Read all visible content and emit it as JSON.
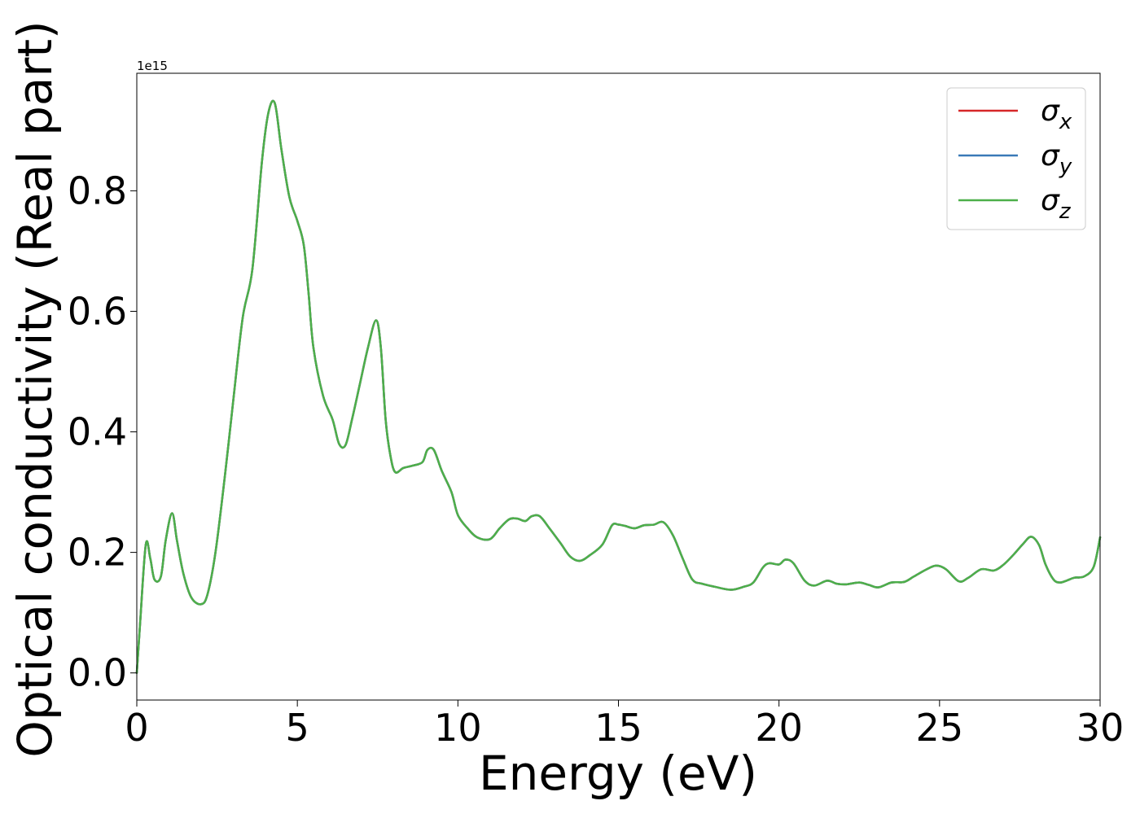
{
  "chart_data": {
    "type": "line",
    "title": "",
    "xlabel": "Energy (eV)",
    "ylabel": "Optical conductivity (Real part)",
    "offset_text": "1e15",
    "xlim": [
      0,
      30
    ],
    "ylim": [
      -0.045,
      0.995
    ],
    "xticks": [
      0,
      5,
      10,
      15,
      20,
      25,
      30
    ],
    "xtick_labels": [
      "0",
      "5",
      "10",
      "15",
      "20",
      "25",
      "30"
    ],
    "yticks": [
      0.0,
      0.2,
      0.4,
      0.6,
      0.8
    ],
    "ytick_labels": [
      "0.0",
      "0.2",
      "0.4",
      "0.6",
      "0.8"
    ],
    "grid": false,
    "legend_position": "top-right",
    "legend": [
      {
        "symbol": "σ",
        "subscript": "x",
        "color": "#d62728"
      },
      {
        "symbol": "σ",
        "subscript": "y",
        "color": "#3a7ab8"
      },
      {
        "symbol": "σ",
        "subscript": "z",
        "color": "#4daf4a"
      }
    ],
    "x": [
      0,
      0.1,
      0.28,
      0.42,
      0.55,
      0.75,
      0.9,
      1.1,
      1.25,
      1.45,
      1.7,
      2.0,
      2.2,
      2.45,
      2.75,
      3.0,
      3.3,
      3.6,
      3.9,
      4.1,
      4.3,
      4.5,
      4.75,
      5.0,
      5.2,
      5.35,
      5.5,
      5.8,
      6.1,
      6.3,
      6.5,
      6.7,
      6.95,
      7.2,
      7.45,
      7.6,
      7.75,
      7.9,
      8.05,
      8.3,
      8.6,
      8.9,
      9.05,
      9.25,
      9.5,
      9.8,
      10.0,
      10.3,
      10.6,
      11.0,
      11.3,
      11.6,
      11.85,
      12.1,
      12.3,
      12.55,
      12.85,
      13.2,
      13.5,
      13.8,
      14.1,
      14.5,
      14.8,
      15.0,
      15.2,
      15.5,
      15.8,
      16.1,
      16.4,
      16.7,
      17.0,
      17.3,
      17.6,
      18.0,
      18.5,
      18.9,
      19.2,
      19.5,
      19.7,
      20.0,
      20.2,
      20.45,
      20.8,
      21.1,
      21.5,
      21.8,
      22.1,
      22.5,
      22.8,
      23.1,
      23.5,
      23.9,
      24.2,
      24.6,
      24.9,
      25.2,
      25.6,
      25.9,
      26.3,
      26.7,
      27.0,
      27.3,
      27.6,
      27.85,
      28.1,
      28.3,
      28.55,
      28.75,
      28.95,
      29.2,
      29.5,
      29.8,
      30.0
    ],
    "series": [
      {
        "name": "σx",
        "color": "#d62728",
        "values": [
          0.0,
          0.08,
          0.213,
          0.19,
          0.155,
          0.16,
          0.22,
          0.265,
          0.22,
          0.165,
          0.125,
          0.114,
          0.13,
          0.2,
          0.33,
          0.45,
          0.59,
          0.67,
          0.85,
          0.93,
          0.945,
          0.87,
          0.79,
          0.75,
          0.71,
          0.63,
          0.54,
          0.46,
          0.42,
          0.38,
          0.378,
          0.42,
          0.48,
          0.54,
          0.585,
          0.54,
          0.42,
          0.36,
          0.333,
          0.34,
          0.344,
          0.35,
          0.37,
          0.37,
          0.335,
          0.3,
          0.262,
          0.24,
          0.225,
          0.222,
          0.24,
          0.255,
          0.256,
          0.252,
          0.26,
          0.26,
          0.24,
          0.215,
          0.193,
          0.186,
          0.195,
          0.213,
          0.245,
          0.246,
          0.244,
          0.24,
          0.245,
          0.246,
          0.25,
          0.228,
          0.19,
          0.155,
          0.148,
          0.143,
          0.138,
          0.143,
          0.15,
          0.175,
          0.182,
          0.18,
          0.188,
          0.182,
          0.153,
          0.145,
          0.153,
          0.148,
          0.147,
          0.15,
          0.146,
          0.142,
          0.15,
          0.151,
          0.16,
          0.172,
          0.178,
          0.172,
          0.152,
          0.158,
          0.172,
          0.17,
          0.18,
          0.196,
          0.214,
          0.226,
          0.212,
          0.18,
          0.155,
          0.15,
          0.153,
          0.158,
          0.16,
          0.176,
          0.225
        ]
      },
      {
        "name": "σy",
        "color": "#3a7ab8",
        "values": [
          0.0,
          0.08,
          0.213,
          0.19,
          0.155,
          0.16,
          0.22,
          0.265,
          0.22,
          0.165,
          0.125,
          0.114,
          0.13,
          0.2,
          0.33,
          0.45,
          0.59,
          0.67,
          0.85,
          0.93,
          0.945,
          0.87,
          0.79,
          0.75,
          0.71,
          0.63,
          0.54,
          0.46,
          0.42,
          0.38,
          0.378,
          0.42,
          0.48,
          0.54,
          0.585,
          0.54,
          0.42,
          0.36,
          0.333,
          0.34,
          0.344,
          0.35,
          0.37,
          0.37,
          0.335,
          0.3,
          0.262,
          0.24,
          0.225,
          0.222,
          0.24,
          0.255,
          0.256,
          0.252,
          0.26,
          0.26,
          0.24,
          0.215,
          0.193,
          0.186,
          0.195,
          0.213,
          0.245,
          0.246,
          0.244,
          0.24,
          0.245,
          0.246,
          0.25,
          0.228,
          0.19,
          0.155,
          0.148,
          0.143,
          0.138,
          0.143,
          0.15,
          0.175,
          0.182,
          0.18,
          0.188,
          0.182,
          0.153,
          0.145,
          0.153,
          0.148,
          0.147,
          0.15,
          0.146,
          0.142,
          0.15,
          0.151,
          0.16,
          0.172,
          0.178,
          0.172,
          0.152,
          0.158,
          0.172,
          0.17,
          0.18,
          0.196,
          0.214,
          0.226,
          0.212,
          0.18,
          0.155,
          0.15,
          0.153,
          0.158,
          0.16,
          0.176,
          0.225
        ]
      },
      {
        "name": "σz",
        "color": "#4daf4a",
        "values": [
          0.0,
          0.08,
          0.213,
          0.19,
          0.155,
          0.16,
          0.22,
          0.265,
          0.22,
          0.165,
          0.125,
          0.114,
          0.13,
          0.2,
          0.33,
          0.45,
          0.59,
          0.67,
          0.85,
          0.93,
          0.945,
          0.87,
          0.79,
          0.75,
          0.71,
          0.63,
          0.54,
          0.46,
          0.42,
          0.38,
          0.378,
          0.42,
          0.48,
          0.54,
          0.585,
          0.54,
          0.42,
          0.36,
          0.333,
          0.34,
          0.344,
          0.35,
          0.37,
          0.37,
          0.335,
          0.3,
          0.262,
          0.24,
          0.225,
          0.222,
          0.24,
          0.255,
          0.256,
          0.252,
          0.26,
          0.26,
          0.24,
          0.215,
          0.193,
          0.186,
          0.195,
          0.213,
          0.245,
          0.246,
          0.244,
          0.24,
          0.245,
          0.246,
          0.25,
          0.228,
          0.19,
          0.155,
          0.148,
          0.143,
          0.138,
          0.143,
          0.15,
          0.175,
          0.182,
          0.18,
          0.188,
          0.182,
          0.153,
          0.145,
          0.153,
          0.148,
          0.147,
          0.15,
          0.146,
          0.142,
          0.15,
          0.151,
          0.16,
          0.172,
          0.178,
          0.172,
          0.152,
          0.158,
          0.172,
          0.17,
          0.18,
          0.196,
          0.214,
          0.226,
          0.212,
          0.18,
          0.155,
          0.15,
          0.153,
          0.158,
          0.16,
          0.176,
          0.225
        ]
      }
    ]
  }
}
